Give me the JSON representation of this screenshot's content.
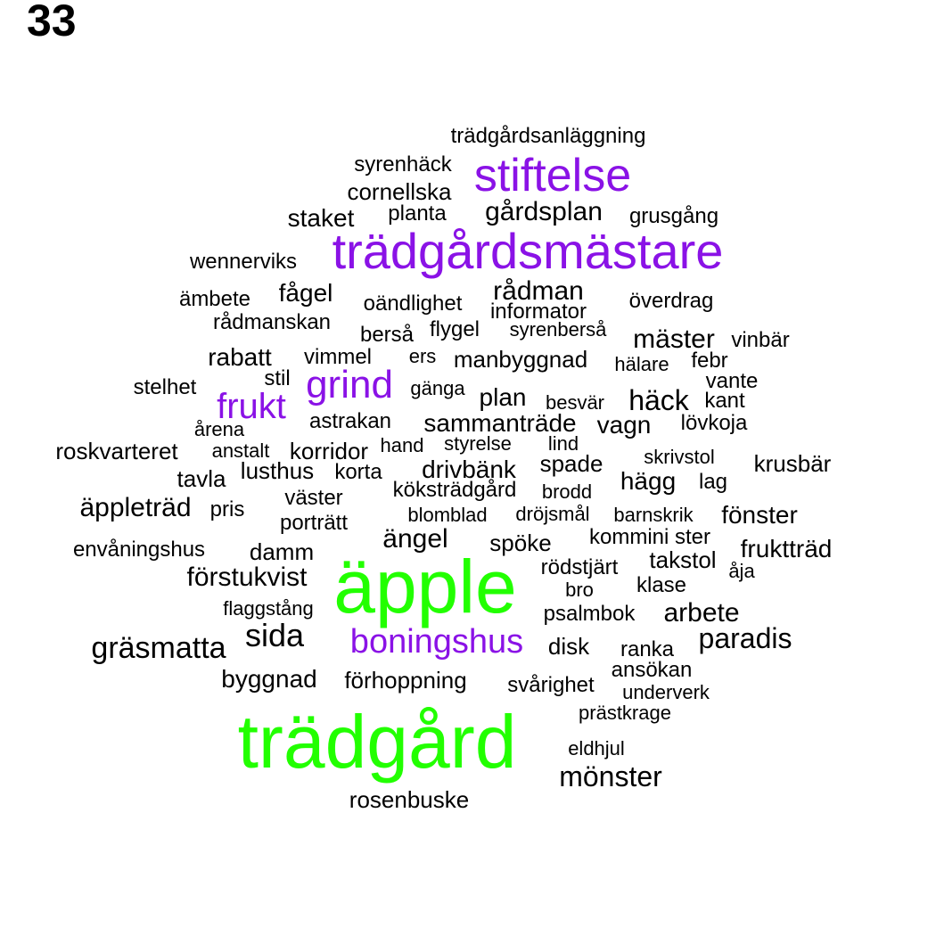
{
  "page_number": "33",
  "colors": {
    "large": "#22ff00",
    "medium": "#8a12e6",
    "small": "#000000"
  },
  "words": [
    {
      "text": "trädgårdsanläggning",
      "tier": "small"
    },
    {
      "text": "syrenhäck",
      "tier": "small"
    },
    {
      "text": "stiftelse",
      "tier": "medium"
    },
    {
      "text": "cornellska",
      "tier": "small"
    },
    {
      "text": "staket",
      "tier": "small"
    },
    {
      "text": "planta",
      "tier": "small"
    },
    {
      "text": "gårdsplan",
      "tier": "small"
    },
    {
      "text": "grusgång",
      "tier": "small"
    },
    {
      "text": "wennerviks",
      "tier": "small"
    },
    {
      "text": "trädgårdsmästare",
      "tier": "medium"
    },
    {
      "text": "ämbete",
      "tier": "small"
    },
    {
      "text": "fågel",
      "tier": "small"
    },
    {
      "text": "oändlighet",
      "tier": "small"
    },
    {
      "text": "rådman",
      "tier": "small"
    },
    {
      "text": "överdrag",
      "tier": "small"
    },
    {
      "text": "rådmanskan",
      "tier": "small"
    },
    {
      "text": "informator",
      "tier": "small"
    },
    {
      "text": "berså",
      "tier": "small"
    },
    {
      "text": "flygel",
      "tier": "small"
    },
    {
      "text": "syrenberså",
      "tier": "small"
    },
    {
      "text": "mäster",
      "tier": "small"
    },
    {
      "text": "vinbär",
      "tier": "small"
    },
    {
      "text": "rabatt",
      "tier": "small"
    },
    {
      "text": "vimmel",
      "tier": "small"
    },
    {
      "text": "ers",
      "tier": "small"
    },
    {
      "text": "manbyggnad",
      "tier": "small"
    },
    {
      "text": "hälare",
      "tier": "small"
    },
    {
      "text": "febr",
      "tier": "small"
    },
    {
      "text": "stelhet",
      "tier": "small"
    },
    {
      "text": "stil",
      "tier": "small"
    },
    {
      "text": "grind",
      "tier": "medium"
    },
    {
      "text": "gänga",
      "tier": "small"
    },
    {
      "text": "plan",
      "tier": "small"
    },
    {
      "text": "häck",
      "tier": "small"
    },
    {
      "text": "vante",
      "tier": "small"
    },
    {
      "text": "frukt",
      "tier": "medium"
    },
    {
      "text": "besvär",
      "tier": "small"
    },
    {
      "text": "kant",
      "tier": "small"
    },
    {
      "text": "årena",
      "tier": "small"
    },
    {
      "text": "astrakan",
      "tier": "small"
    },
    {
      "text": "sammanträde",
      "tier": "small"
    },
    {
      "text": "vagn",
      "tier": "small"
    },
    {
      "text": "lövkoja",
      "tier": "small"
    },
    {
      "text": "roskvarteret",
      "tier": "small"
    },
    {
      "text": "anstalt",
      "tier": "small"
    },
    {
      "text": "korridor",
      "tier": "small"
    },
    {
      "text": "hand",
      "tier": "small"
    },
    {
      "text": "styrelse",
      "tier": "small"
    },
    {
      "text": "lind",
      "tier": "small"
    },
    {
      "text": "skrivstol",
      "tier": "small"
    },
    {
      "text": "tavla",
      "tier": "small"
    },
    {
      "text": "lusthus",
      "tier": "small"
    },
    {
      "text": "korta",
      "tier": "small"
    },
    {
      "text": "drivbänk",
      "tier": "small"
    },
    {
      "text": "spade",
      "tier": "small"
    },
    {
      "text": "krusbär",
      "tier": "small"
    },
    {
      "text": "hägg",
      "tier": "small"
    },
    {
      "text": "lag",
      "tier": "small"
    },
    {
      "text": "köksträdgård",
      "tier": "small"
    },
    {
      "text": "brodd",
      "tier": "small"
    },
    {
      "text": "väster",
      "tier": "small"
    },
    {
      "text": "äppleträd",
      "tier": "small"
    },
    {
      "text": "pris",
      "tier": "small"
    },
    {
      "text": "blomblad",
      "tier": "small"
    },
    {
      "text": "dröjsmål",
      "tier": "small"
    },
    {
      "text": "barnskrik",
      "tier": "small"
    },
    {
      "text": "fönster",
      "tier": "small"
    },
    {
      "text": "porträtt",
      "tier": "small"
    },
    {
      "text": "ängel",
      "tier": "small"
    },
    {
      "text": "kommini ster",
      "tier": "small"
    },
    {
      "text": "spöke",
      "tier": "small"
    },
    {
      "text": "envåningshus",
      "tier": "small"
    },
    {
      "text": "damm",
      "tier": "small"
    },
    {
      "text": "fruktträd",
      "tier": "small"
    },
    {
      "text": "takstol",
      "tier": "small"
    },
    {
      "text": "rödstjärt",
      "tier": "small"
    },
    {
      "text": "åja",
      "tier": "small"
    },
    {
      "text": "förstukvist",
      "tier": "small"
    },
    {
      "text": "äpple",
      "tier": "large"
    },
    {
      "text": "bro",
      "tier": "small"
    },
    {
      "text": "klase",
      "tier": "small"
    },
    {
      "text": "flaggstång",
      "tier": "small"
    },
    {
      "text": "psalmbok",
      "tier": "small"
    },
    {
      "text": "arbete",
      "tier": "small"
    },
    {
      "text": "sida",
      "tier": "small"
    },
    {
      "text": "gräsmatta",
      "tier": "small"
    },
    {
      "text": "boningshus",
      "tier": "medium"
    },
    {
      "text": "disk",
      "tier": "small"
    },
    {
      "text": "ranka",
      "tier": "small"
    },
    {
      "text": "paradis",
      "tier": "small"
    },
    {
      "text": "ansökan",
      "tier": "small"
    },
    {
      "text": "byggnad",
      "tier": "small"
    },
    {
      "text": "förhoppning",
      "tier": "small"
    },
    {
      "text": "svårighet",
      "tier": "small"
    },
    {
      "text": "underverk",
      "tier": "small"
    },
    {
      "text": "prästkrage",
      "tier": "small"
    },
    {
      "text": "trädgård",
      "tier": "large"
    },
    {
      "text": "eldhjul",
      "tier": "small"
    },
    {
      "text": "mönster",
      "tier": "small"
    },
    {
      "text": "rosenbuske",
      "tier": "small"
    }
  ]
}
